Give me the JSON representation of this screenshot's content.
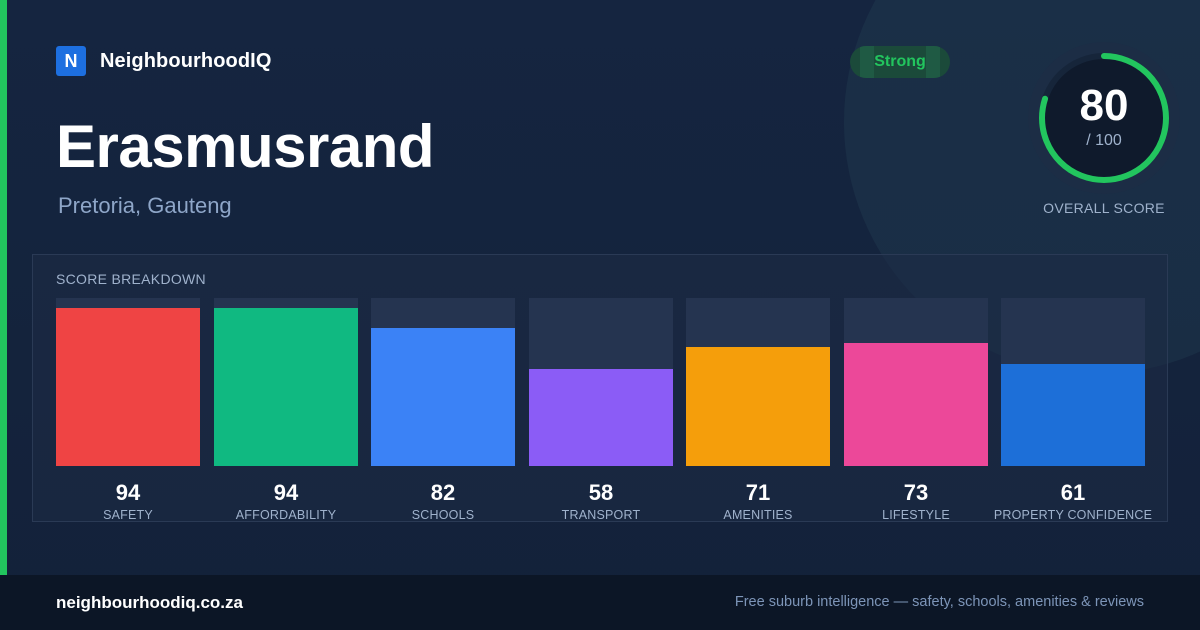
{
  "brand": {
    "logo_letter": "N",
    "name": "NeighbourhoodIQ"
  },
  "suburb": {
    "name": "Erasmusrand",
    "location": "Pretoria, Gauteng"
  },
  "badge": {
    "label": "Strong",
    "color": "#22c55e"
  },
  "overall": {
    "score": "80",
    "max": "/ 100",
    "label": "OVERALL SCORE",
    "value": 80,
    "out_of": 100,
    "ring_color": "#22c55e"
  },
  "breakdown": {
    "title": "SCORE BREAKDOWN",
    "max": 100,
    "items": [
      {
        "label": "SAFETY",
        "value": "94",
        "score": 94,
        "color": "#ef4444"
      },
      {
        "label": "AFFORDABILITY",
        "value": "94",
        "score": 94,
        "color": "#10b981"
      },
      {
        "label": "SCHOOLS",
        "value": "82",
        "score": 82,
        "color": "#3b82f6"
      },
      {
        "label": "TRANSPORT",
        "value": "58",
        "score": 58,
        "color": "#8b5cf6"
      },
      {
        "label": "AMENITIES",
        "value": "71",
        "score": 71,
        "color": "#f59e0b"
      },
      {
        "label": "LIFESTYLE",
        "value": "73",
        "score": 73,
        "color": "#ec4899"
      },
      {
        "label": "PROPERTY CONFIDENCE",
        "value": "61",
        "score": 61,
        "color": "#1d6fd8"
      }
    ]
  },
  "footer": {
    "site": "neighbourhoodiq.co.za",
    "tagline": "Free suburb intelligence — safety, schools, amenities & reviews"
  }
}
